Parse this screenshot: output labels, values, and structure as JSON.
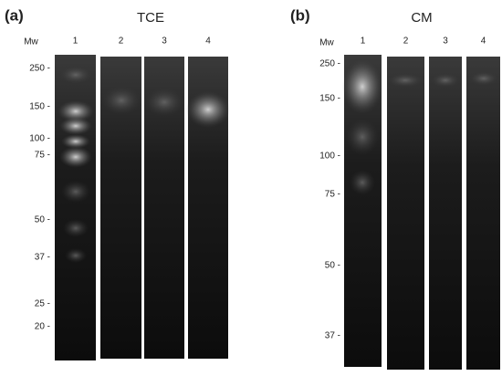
{
  "panels": [
    {
      "label": "(a)",
      "title": "TCE",
      "mw_label": "Mw",
      "lanes": [
        "1",
        "2",
        "3",
        "4"
      ],
      "markers": [
        "250 -",
        "150 -",
        "100 -",
        "75 -",
        "50 -",
        "37 -",
        "25 -",
        "20 -"
      ]
    },
    {
      "label": "(b)",
      "title": "CM",
      "mw_label": "Mw",
      "lanes": [
        "1",
        "2",
        "3",
        "4"
      ],
      "markers": [
        "250 -",
        "150 -",
        "100 -",
        "75 -",
        "50 -",
        "37 -"
      ]
    }
  ]
}
